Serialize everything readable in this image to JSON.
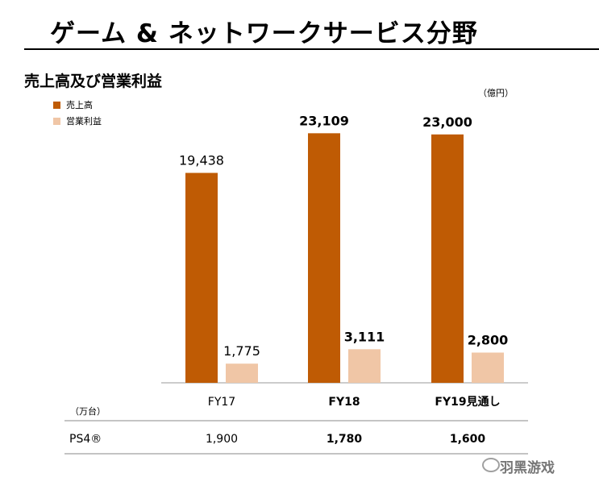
{
  "header": {
    "title": "ゲーム & ネットワークサービス分野",
    "subtitle": "売上高及び営業利益",
    "unit": "（億円）"
  },
  "legend": [
    {
      "label": "売上高",
      "color": "#bf5b04"
    },
    {
      "label": "営業利益",
      "color": "#f0c6a6"
    }
  ],
  "chart_data": {
    "type": "bar",
    "title": "売上高及び営業利益",
    "categories": [
      "FY17",
      "FY18",
      "FY19見通し"
    ],
    "series": [
      {
        "name": "売上高",
        "values": [
          19438,
          23109,
          23000
        ],
        "labels": [
          "19,438",
          "23,109",
          "23,000"
        ],
        "color": "#bf5b04"
      },
      {
        "name": "営業利益",
        "values": [
          1775,
          3111,
          2800
        ],
        "labels": [
          "1,775",
          "3,111",
          "2,800"
        ],
        "color": "#f0c6a6"
      }
    ],
    "unit": "（億円）",
    "ylim": [
      0,
      25000
    ],
    "grid": false,
    "legend_position": "top-left",
    "bold_categories": [
      false,
      true,
      true
    ]
  },
  "table": {
    "unit_label": "（万台）",
    "row_label": "PS4®",
    "values": [
      "1,900",
      "1,780",
      "1,600"
    ]
  },
  "watermark": {
    "text": "羽黑游戏"
  }
}
